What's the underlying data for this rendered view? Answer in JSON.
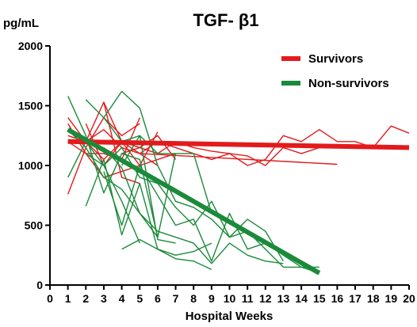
{
  "chart_data": {
    "type": "line",
    "title": "TGF- β1",
    "y_unit_label": "pg/mL",
    "xlabel": "Hospital Weeks",
    "ylabel": "",
    "xlim": [
      0,
      20
    ],
    "ylim": [
      0,
      2000
    ],
    "x_ticks": [
      0,
      1,
      2,
      3,
      4,
      5,
      6,
      7,
      8,
      9,
      10,
      11,
      12,
      13,
      14,
      15,
      16,
      17,
      18,
      19,
      20
    ],
    "y_ticks": [
      0,
      500,
      1000,
      1500,
      2000
    ],
    "grid": false,
    "legend_position": "top-right",
    "legend": [
      {
        "name": "Survivors",
        "color": "#e31a1c"
      },
      {
        "name": "Non-survivors",
        "color": "#1b8a3a"
      }
    ],
    "trend_lines": [
      {
        "name": "Survivors",
        "color": "#e31a1c",
        "x": [
          1,
          20
        ],
        "y": [
          1200,
          1150
        ]
      },
      {
        "name": "Non-survivors",
        "color": "#1b8a3a",
        "x": [
          1,
          15
        ],
        "y": [
          1300,
          100
        ]
      }
    ],
    "series_groups": [
      {
        "name": "Survivors",
        "color": "#e31a1c",
        "lines": [
          {
            "x": [
              1,
              2,
              3,
              4,
              5,
              6,
              7,
              8,
              9,
              10,
              11,
              12,
              13,
              14,
              15,
              16,
              17,
              18,
              19,
              20
            ],
            "y": [
              1250,
              1200,
              1300,
              1150,
              1100,
              1200,
              1150,
              1100,
              1050,
              1100,
              1000,
              1050,
              1250,
              1200,
              1300,
              1200,
              1200,
              1150,
              1330,
              1270
            ]
          },
          {
            "x": [
              1,
              2,
              3,
              4,
              5
            ],
            "y": [
              760,
              1150,
              1400,
              1250,
              1350
            ]
          },
          {
            "x": [
              1,
              2,
              3,
              4,
              5
            ],
            "y": [
              1350,
              1100,
              1100,
              1050,
              1400
            ]
          },
          {
            "x": [
              1,
              2,
              3,
              4,
              5,
              6
            ],
            "y": [
              1400,
              1200,
              1050,
              1200,
              1000,
              1280
            ]
          },
          {
            "x": [
              2,
              3,
              4,
              5,
              6
            ],
            "y": [
              1350,
              1000,
              1200,
              1100,
              1000
            ]
          },
          {
            "x": [
              2,
              3,
              4,
              5
            ],
            "y": [
              1200,
              1530,
              900,
              850
            ]
          },
          {
            "x": [
              3,
              4,
              5,
              6,
              7
            ],
            "y": [
              1530,
              1200,
              1150,
              1250,
              1050
            ]
          },
          {
            "x": [
              4,
              5,
              6,
              7,
              8,
              9,
              10,
              11,
              12,
              13,
              14,
              15
            ],
            "y": [
              1100,
              1150,
              1100,
              1200,
              1150,
              1120,
              1100,
              1080,
              1000,
              1150,
              1100,
              1150
            ]
          },
          {
            "x": [
              5,
              16
            ],
            "y": [
              1100,
              1010
            ]
          },
          {
            "x": [
              1,
              2,
              3,
              4,
              5,
              6,
              7
            ],
            "y": [
              1200,
              1100,
              900,
              950,
              1000,
              1050,
              1100
            ]
          }
        ]
      },
      {
        "name": "Non-survivors",
        "color": "#1b8a3a",
        "lines": [
          {
            "x": [
              1,
              2,
              3,
              4,
              5,
              6,
              7
            ],
            "y": [
              1580,
              1250,
              770,
              1100,
              1050,
              400,
              1100
            ]
          },
          {
            "x": [
              1,
              2,
              3,
              4,
              5
            ],
            "y": [
              900,
              1200,
              1000,
              700,
              350
            ]
          },
          {
            "x": [
              2,
              3,
              4,
              5,
              6,
              7,
              8,
              9,
              10,
              11,
              12,
              13
            ],
            "y": [
              1550,
              1400,
              1620,
              1480,
              1000,
              700,
              650,
              550,
              400,
              550,
              450,
              200
            ]
          },
          {
            "x": [
              2,
              3,
              4,
              5,
              6,
              7,
              8,
              9,
              10,
              11,
              12,
              13,
              14,
              15
            ],
            "y": [
              1100,
              1000,
              1150,
              900,
              850,
              650,
              500,
              700,
              400,
              450,
              300,
              150,
              150,
              100
            ]
          },
          {
            "x": [
              3,
              4,
              5,
              6,
              7,
              8,
              9,
              10,
              11,
              12,
              13,
              14,
              15
            ],
            "y": [
              950,
              500,
              1000,
              750,
              500,
              550,
              200,
              600,
              300,
              350,
              250,
              150,
              150
            ]
          },
          {
            "x": [
              3,
              4,
              5,
              6,
              7
            ],
            "y": [
              1400,
              1200,
              1250,
              380,
              350
            ]
          },
          {
            "x": [
              4,
              5,
              6,
              7,
              8,
              9
            ],
            "y": [
              300,
              380,
              300,
              250,
              280,
              350
            ]
          },
          {
            "x": [
              1,
              2,
              3,
              4,
              5,
              6,
              7,
              8,
              9,
              10,
              11,
              12,
              13
            ],
            "y": [
              1300,
              1150,
              900,
              800,
              600,
              450,
              400,
              350,
              180,
              350,
              250,
              200,
              180
            ]
          },
          {
            "x": [
              2,
              3,
              4,
              5,
              6,
              7,
              8,
              9
            ],
            "y": [
              660,
              1050,
              420,
              850,
              300,
              220,
              200,
              130
            ]
          },
          {
            "x": [
              4,
              5,
              6,
              7,
              8,
              9
            ],
            "y": [
              1000,
              1250,
              1100,
              1100,
              1100,
              600
            ]
          },
          {
            "x": [
              3,
              4,
              5,
              6
            ],
            "y": [
              1150,
              980,
              600,
              400
            ]
          }
        ]
      }
    ]
  }
}
